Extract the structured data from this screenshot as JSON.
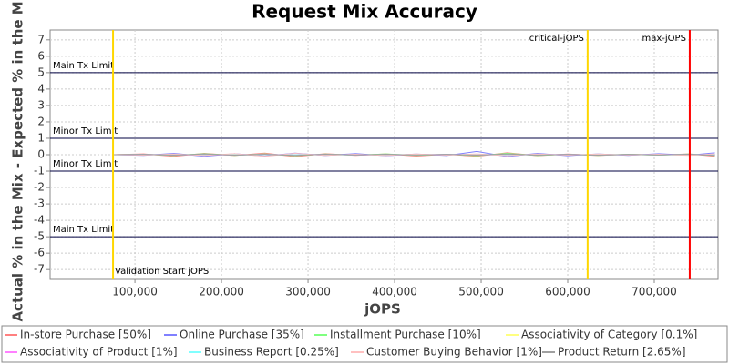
{
  "chart_data": {
    "type": "line",
    "title": "Request Mix Accuracy",
    "x_label": "jOPS",
    "y_label": "Actual % in the Mix - Expected % in the Mix",
    "x": [
      75000,
      110000,
      145000,
      180000,
      215000,
      250000,
      285000,
      320000,
      355000,
      390000,
      425000,
      460000,
      495000,
      530000,
      565000,
      600000,
      635000,
      670000,
      705000,
      740000,
      770000
    ],
    "series": [
      {
        "name": "In-store Purchase [50%]",
        "color": "#ff8080",
        "values": [
          0,
          0.05,
          -0.1,
          0.08,
          -0.05,
          0.1,
          -0.12,
          0.06,
          -0.04,
          0.05,
          -0.08,
          0.03,
          -0.1,
          0.12,
          -0.06,
          0.04,
          -0.05,
          0.03,
          -0.02,
          0.05,
          -0.1
        ]
      },
      {
        "name": "Online Purchase [35%]",
        "color": "#8080ff",
        "values": [
          0,
          -0.04,
          0.08,
          -0.1,
          0.06,
          -0.08,
          0.1,
          -0.05,
          0.07,
          -0.06,
          0.04,
          -0.05,
          0.2,
          -0.12,
          0.08,
          -0.06,
          0.05,
          -0.04,
          0.06,
          -0.03,
          0.12
        ]
      },
      {
        "name": "Installment Purchase [10%]",
        "color": "#80ff80",
        "values": [
          0,
          0.03,
          -0.05,
          0.06,
          -0.04,
          0.05,
          -0.06,
          0.04,
          -0.03,
          0.05,
          -0.04,
          0.03,
          -0.06,
          0.08,
          -0.05,
          0.03,
          -0.04,
          0.02,
          -0.03,
          0.04,
          -0.05
        ]
      },
      {
        "name": "Associativity of Category [0.1%]",
        "color": "#ffff80",
        "values": [
          0,
          0,
          0,
          0,
          0,
          0,
          0,
          0,
          0,
          0,
          0,
          0,
          0,
          0,
          0,
          0,
          0,
          0,
          0,
          0,
          0
        ]
      },
      {
        "name": "Associativity of Product [1%]",
        "color": "#ff80ff",
        "values": [
          0,
          0.02,
          -0.02,
          0.01,
          -0.02,
          0.02,
          -0.01,
          0.02,
          -0.02,
          0.01,
          -0.01,
          0.02,
          -0.02,
          0.01,
          -0.01,
          0.02,
          -0.02,
          0.01,
          -0.01,
          0.02,
          -0.01
        ]
      },
      {
        "name": "Business Report [0.25%]",
        "color": "#80ffff",
        "values": [
          0,
          0.01,
          -0.01,
          0.01,
          -0.01,
          0.01,
          -0.01,
          0.01,
          -0.01,
          0.01,
          -0.01,
          0.01,
          -0.01,
          0.01,
          -0.01,
          0.01,
          -0.01,
          0.01,
          -0.01,
          0.01,
          -0.01
        ]
      },
      {
        "name": "Customer Buying Behavior [1%]",
        "color": "#ffc0c0",
        "values": [
          0,
          -0.03,
          0.04,
          -0.05,
          0.06,
          -0.1,
          0.08,
          -0.04,
          0.03,
          -0.05,
          0.04,
          -0.03,
          0.05,
          -0.06,
          0.04,
          -0.03,
          0.04,
          -0.02,
          0.03,
          -0.04,
          0.05
        ]
      },
      {
        "name": "Product Return [2.65%]",
        "color": "#a0a0a0",
        "values": [
          0,
          0.02,
          -0.03,
          0.04,
          -0.03,
          0.02,
          -0.04,
          0.03,
          -0.02,
          0.03,
          -0.02,
          0.02,
          -0.03,
          0.04,
          -0.03,
          0.02,
          -0.03,
          0.02,
          -0.02,
          0.03,
          -0.04
        ]
      }
    ],
    "xlim": [
      2000,
      773700
    ],
    "ylim": [
      -7.6,
      7.6
    ],
    "xticks": [
      {
        "value": 100000,
        "label": "100,000"
      },
      {
        "value": 200000,
        "label": "200,000"
      },
      {
        "value": 300000,
        "label": "300,000"
      },
      {
        "value": 400000,
        "label": "400,000"
      },
      {
        "value": 500000,
        "label": "500,000"
      },
      {
        "value": 600000,
        "label": "600,000"
      },
      {
        "value": 700000,
        "label": "700,000"
      }
    ],
    "yticks": [
      -7,
      -6,
      -5,
      -4,
      -3,
      -2,
      -1,
      0,
      1,
      2,
      3,
      4,
      5,
      6,
      7
    ],
    "grid": true,
    "hlines": [
      {
        "value": 5,
        "label": "Main Tx Limit"
      },
      {
        "value": 1,
        "label": "Minor Tx Limit"
      },
      {
        "value": -1,
        "label": "Minor Tx Limit"
      },
      {
        "value": -5,
        "label": "Main Tx Limit"
      }
    ],
    "hline_color": "#000040",
    "vlines": [
      {
        "value": 74700,
        "label": "Validation Start jOPS",
        "color": "#ffd700"
      },
      {
        "value": 623000,
        "label": "critical-jOPS",
        "color": "#ffd700"
      },
      {
        "value": 741000,
        "label": "max-jOPS",
        "color": "#ff0000"
      }
    ]
  }
}
